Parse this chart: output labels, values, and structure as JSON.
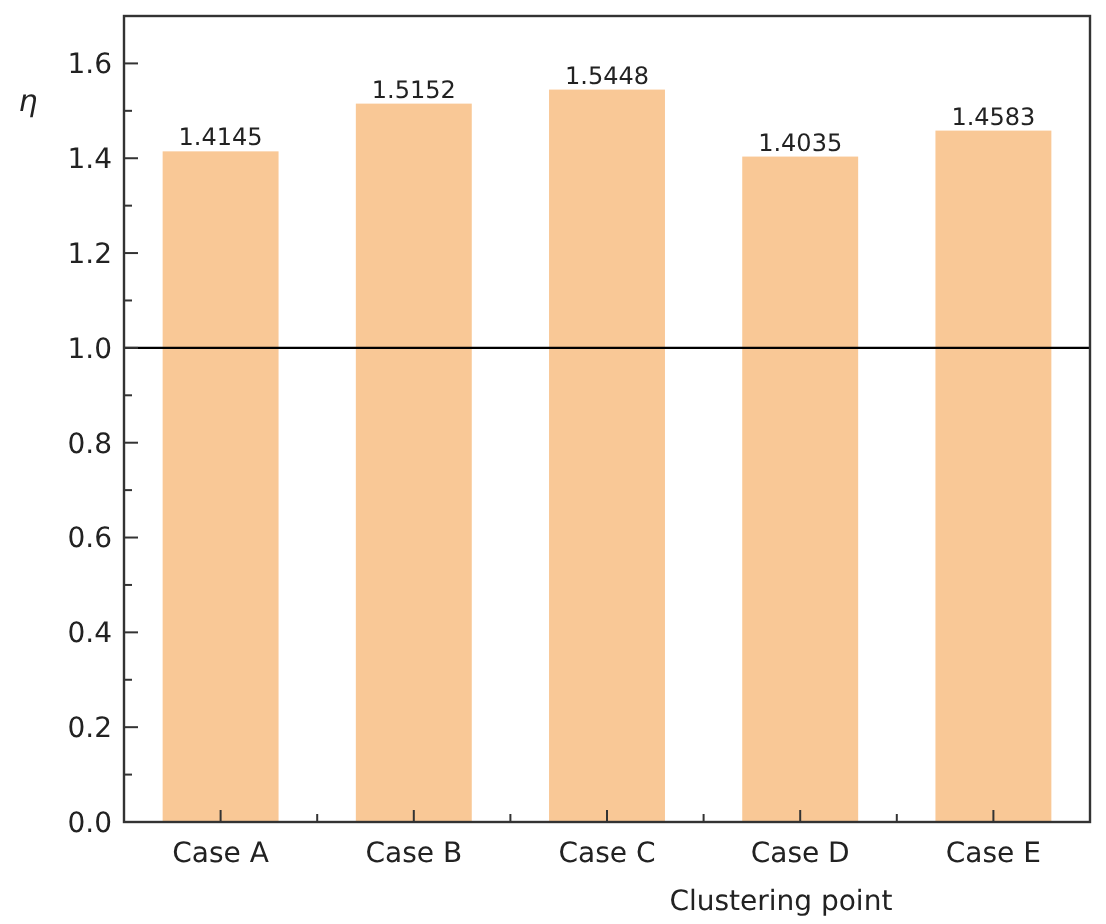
{
  "chart_data": {
    "type": "bar",
    "xlabel": "Clustering point",
    "ylabel": "η",
    "categories": [
      "Case A",
      "Case B",
      "Case C",
      "Case D",
      "Case E"
    ],
    "values": [
      1.4145,
      1.5152,
      1.5448,
      1.4035,
      1.4583
    ],
    "color": "#f9c896",
    "data_labels": true,
    "ylim": [
      0,
      1.7
    ],
    "yticks": [
      "0.0",
      "0.2",
      "0.4",
      "0.6",
      "0.8",
      "1.0",
      "1.2",
      "1.4",
      "1.6"
    ],
    "ref_lines": [
      {
        "axis": "y",
        "value": 1.0,
        "color": "#000000"
      }
    ],
    "grid": false
  }
}
